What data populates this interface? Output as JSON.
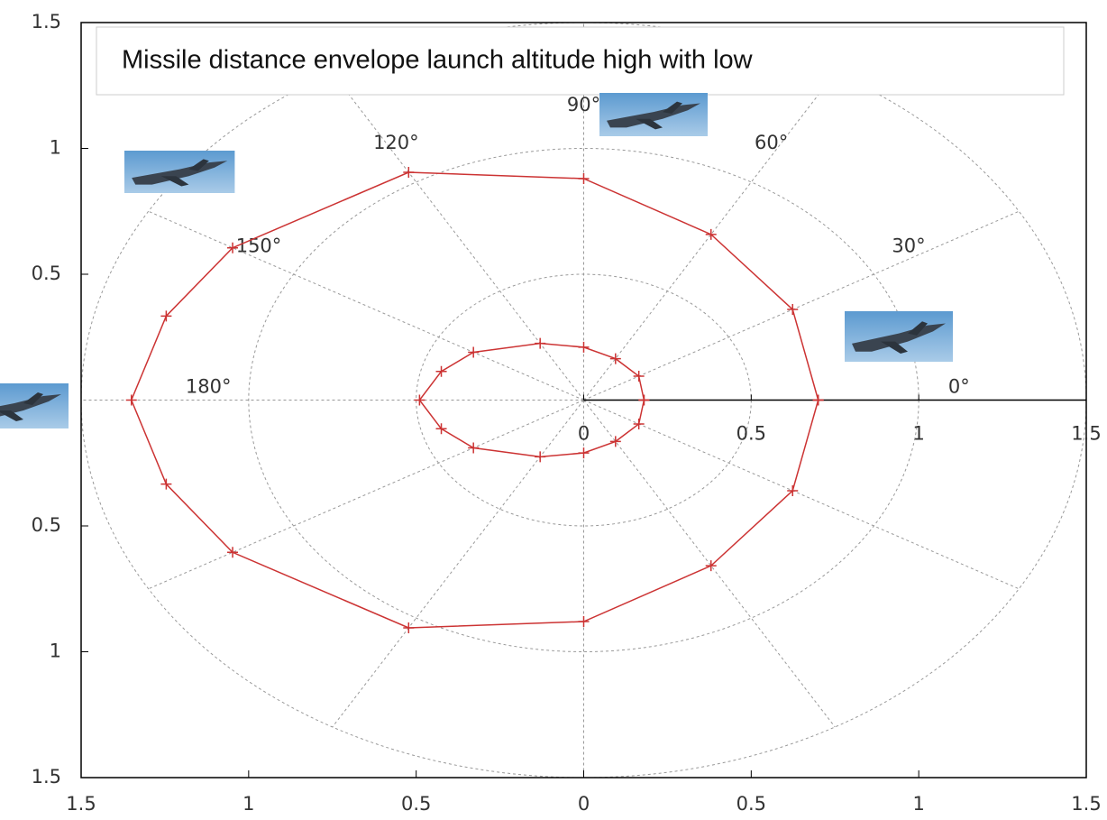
{
  "chart_data": {
    "type": "polar",
    "title": "Missile distance envelope launch altitude high with low",
    "xlim": [
      -1.5,
      1.5
    ],
    "ylim": [
      -1.5,
      1.5
    ],
    "xticks": [
      {
        "value": -1.5,
        "label": "1.5"
      },
      {
        "value": -1,
        "label": "1"
      },
      {
        "value": -0.5,
        "label": "0.5"
      },
      0,
      0.5,
      1,
      1.5
    ],
    "yticks": [
      {
        "value": -1.5,
        "label": "1.5"
      },
      {
        "value": -1,
        "label": "1"
      },
      {
        "value": -0.5,
        "label": "0.5"
      },
      0.5,
      1,
      1.5
    ],
    "rticks": [
      0,
      0.5,
      1,
      1.5
    ],
    "thetaticks": [
      {
        "value": 0,
        "label": "0°"
      },
      {
        "value": 30,
        "label": "30°"
      },
      {
        "value": 60,
        "label": "60°"
      },
      {
        "value": 90,
        "label": "90°"
      },
      {
        "value": 120,
        "label": "120°"
      },
      {
        "value": 150,
        "label": "150°"
      },
      {
        "value": 180,
        "label": "180°"
      }
    ],
    "grid": true,
    "series": [
      {
        "color": "#cc3333",
        "theta": [
          0,
          30,
          60,
          90,
          120,
          150,
          165,
          180,
          195,
          210,
          240,
          270,
          300,
          330,
          360
        ],
        "r": [
          0.7,
          0.72,
          0.76,
          0.88,
          1.045,
          1.21,
          1.29,
          1.35,
          1.29,
          1.21,
          1.045,
          0.88,
          0.76,
          0.72,
          0.7
        ]
      },
      {
        "color": "#cc3333",
        "theta": [
          0,
          30,
          60,
          90,
          120,
          150,
          165,
          180,
          195,
          210,
          240,
          270,
          300,
          330,
          360
        ],
        "r": [
          0.18,
          0.19,
          0.19,
          0.21,
          0.26,
          0.38,
          0.44,
          0.49,
          0.44,
          0.38,
          0.26,
          0.21,
          0.19,
          0.19,
          0.18
        ]
      }
    ]
  }
}
